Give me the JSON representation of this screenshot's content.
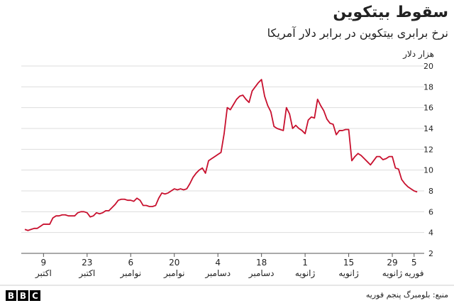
{
  "chart_data": {
    "type": "line",
    "title": "سقوط بیتکوین",
    "subtitle": "نرخ برابری بیتکوین در برابر دلار آمریکا",
    "y_axis_label": "هزار دلار",
    "source": "منبع: بلومبرگ پنجم فوریه",
    "brand": [
      "B",
      "B",
      "C"
    ],
    "color": "#c8102e",
    "grid": true,
    "ylim": [
      2,
      20
    ],
    "yticks": [
      2,
      4,
      6,
      8,
      10,
      12,
      14,
      16,
      18,
      20
    ],
    "categories": [
      null,
      null,
      null,
      null,
      null,
      null,
      {
        "day": "9",
        "month": "اکتبر"
      },
      null,
      null,
      null,
      null,
      null,
      null,
      null,
      null,
      null,
      null,
      null,
      null,
      null,
      {
        "day": "23",
        "month": "اکتبر"
      },
      null,
      null,
      null,
      null,
      null,
      null,
      null,
      null,
      null,
      null,
      null,
      null,
      null,
      {
        "day": "6",
        "month": "نوامبر"
      },
      null,
      null,
      null,
      null,
      null,
      null,
      null,
      null,
      null,
      null,
      null,
      null,
      null,
      {
        "day": "20",
        "month": "نوامبر"
      },
      null,
      null,
      null,
      null,
      null,
      null,
      null,
      null,
      null,
      null,
      null,
      null,
      null,
      {
        "day": "4",
        "month": "دسامبر"
      },
      null,
      null,
      null,
      null,
      null,
      null,
      null,
      null,
      null,
      null,
      null,
      null,
      null,
      {
        "day": "18",
        "month": "دسامبر"
      },
      null,
      null,
      null,
      null,
      null,
      null,
      null,
      null,
      null,
      null,
      null,
      null,
      null,
      {
        "day": "1",
        "month": "ژانویه"
      },
      null,
      null,
      null,
      null,
      null,
      null,
      null,
      null,
      null,
      null,
      null,
      null,
      null,
      {
        "day": "15",
        "month": "ژانویه"
      },
      null,
      null,
      null,
      null,
      null,
      null,
      null,
      null,
      null,
      null,
      null,
      null,
      null,
      {
        "day": "29",
        "month": "ژانویه"
      },
      null,
      null,
      null,
      null,
      null,
      null,
      {
        "day": "5",
        "month": "فوریه"
      },
      null
    ],
    "values": [
      4.3,
      4.2,
      4.3,
      4.4,
      4.4,
      4.6,
      4.8,
      4.8,
      4.8,
      5.4,
      5.6,
      5.6,
      5.7,
      5.7,
      5.6,
      5.6,
      5.6,
      5.9,
      6.0,
      6.0,
      5.9,
      5.5,
      5.6,
      5.9,
      5.8,
      5.9,
      6.1,
      6.1,
      6.4,
      6.7,
      7.1,
      7.2,
      7.2,
      7.1,
      7.1,
      7.0,
      7.3,
      7.1,
      6.6,
      6.6,
      6.5,
      6.5,
      6.6,
      7.3,
      7.8,
      7.7,
      7.8,
      8.0,
      8.2,
      8.1,
      8.2,
      8.1,
      8.2,
      8.7,
      9.3,
      9.7,
      10.0,
      10.2,
      9.7,
      10.9,
      11.1,
      11.3,
      11.5,
      11.7,
      13.5,
      16.0,
      15.8,
      16.3,
      16.8,
      17.1,
      17.2,
      16.8,
      16.5,
      17.6,
      18.0,
      18.4,
      18.7,
      17.1,
      16.2,
      15.6,
      14.2,
      14.0,
      13.9,
      13.8,
      16.0,
      15.4,
      14.0,
      14.3,
      14.0,
      13.8,
      13.5,
      14.8,
      15.1,
      15.0,
      16.8,
      16.2,
      15.7,
      14.9,
      14.5,
      14.4,
      13.4,
      13.8,
      13.8,
      13.9,
      13.9,
      10.9,
      11.3,
      11.6,
      11.4,
      11.1,
      10.8,
      10.5,
      10.9,
      11.3,
      11.3,
      11.0,
      11.1,
      11.3,
      11.3,
      10.2,
      10.1,
      9.1,
      8.7,
      8.4,
      8.2,
      8.0,
      7.9
    ]
  }
}
